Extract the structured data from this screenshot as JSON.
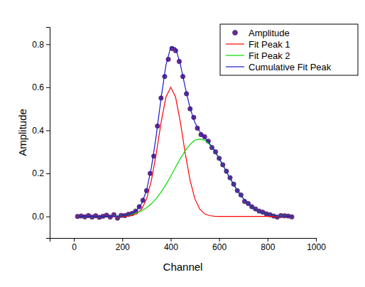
{
  "chart_data": {
    "type": "scatter",
    "x_label": "Channel",
    "y_label": "Amplitude",
    "xlim": [
      -100,
      1000
    ],
    "xticks": [
      0,
      200,
      400,
      600,
      800,
      1000
    ],
    "ylim": [
      -0.1,
      0.88
    ],
    "yticks": [
      {
        "value": 0,
        "label": "0.0"
      },
      {
        "value": 0.2,
        "label": "0.2"
      },
      {
        "value": 0.4,
        "label": "0.4"
      },
      {
        "value": 0.6,
        "label": "0.6"
      },
      {
        "value": 0.8,
        "label": "0.8"
      }
    ],
    "legend": "top-right",
    "series": [
      {
        "name": "Amplitude",
        "type": "scatter",
        "marker": "circle",
        "color": "#6a2c91",
        "x": [
          15,
          30,
          45,
          60,
          75,
          90,
          105,
          120,
          135,
          150,
          165,
          180,
          195,
          210,
          225,
          240,
          255,
          270,
          285,
          300,
          315,
          330,
          345,
          360,
          375,
          390,
          405,
          420,
          435,
          450,
          465,
          480,
          495,
          510,
          525,
          540,
          555,
          570,
          585,
          600,
          615,
          630,
          645,
          660,
          675,
          690,
          705,
          720,
          735,
          750,
          765,
          780,
          795,
          810,
          825,
          840,
          855,
          870,
          885,
          900
        ],
        "values": [
          0.0,
          0.002,
          -0.002,
          0.004,
          -0.003,
          0.003,
          -0.004,
          0.001,
          0.006,
          -0.003,
          0.008,
          -0.008,
          0.005,
          0.004,
          0.01,
          0.014,
          0.025,
          0.045,
          0.075,
          0.12,
          0.2,
          0.28,
          0.42,
          0.55,
          0.65,
          0.73,
          0.78,
          0.77,
          0.72,
          0.65,
          0.57,
          0.5,
          0.46,
          0.41,
          0.38,
          0.37,
          0.35,
          0.32,
          0.3,
          0.27,
          0.24,
          0.21,
          0.18,
          0.15,
          0.12,
          0.1,
          0.07,
          0.06,
          0.045,
          0.035,
          0.025,
          0.02,
          0.012,
          0.008,
          0.002,
          -0.003,
          0.004,
          0.003,
          0.002,
          -0.002
        ]
      },
      {
        "name": "Fit Peak 1",
        "type": "line",
        "line_style": "solid",
        "color": "#ff0000",
        "x": [
          20,
          40,
          60,
          80,
          100,
          120,
          140,
          160,
          180,
          200,
          220,
          240,
          260,
          280,
          300,
          320,
          340,
          360,
          380,
          400,
          420,
          440,
          460,
          480,
          500,
          520,
          540,
          560,
          580,
          600,
          620,
          640,
          660,
          680,
          700,
          720,
          740,
          760,
          780,
          800,
          820,
          840,
          860,
          880,
          900
        ],
        "values": [
          0,
          0,
          0,
          0,
          0,
          0,
          0,
          0,
          0,
          0,
          0.001,
          0.004,
          0.012,
          0.034,
          0.081,
          0.167,
          0.292,
          0.436,
          0.554,
          0.6,
          0.554,
          0.436,
          0.292,
          0.167,
          0.081,
          0.034,
          0.012,
          0.004,
          0.001,
          0,
          0,
          0,
          0,
          0,
          0,
          0,
          0,
          0,
          0,
          0,
          0,
          0,
          0,
          0,
          0
        ]
      },
      {
        "name": "Fit Peak 2",
        "type": "line",
        "line_style": "solid",
        "color": "#00dd00",
        "x": [
          20,
          40,
          60,
          80,
          100,
          120,
          140,
          160,
          180,
          200,
          220,
          240,
          260,
          280,
          300,
          320,
          340,
          360,
          380,
          400,
          420,
          440,
          460,
          480,
          500,
          520,
          540,
          560,
          580,
          600,
          620,
          640,
          660,
          680,
          700,
          720,
          740,
          760,
          780,
          800,
          820,
          840,
          860,
          880,
          900
        ],
        "values": [
          0,
          0,
          0,
          0,
          0,
          0,
          0,
          0.001,
          0.002,
          0.003,
          0.006,
          0.01,
          0.017,
          0.026,
          0.04,
          0.059,
          0.083,
          0.113,
          0.148,
          0.187,
          0.229,
          0.269,
          0.306,
          0.335,
          0.354,
          0.36,
          0.354,
          0.335,
          0.306,
          0.269,
          0.229,
          0.187,
          0.148,
          0.113,
          0.083,
          0.059,
          0.04,
          0.026,
          0.017,
          0.01,
          0.006,
          0.003,
          0.002,
          0.001,
          0
        ]
      },
      {
        "name": "Cumulative Fit Peak",
        "type": "line",
        "line_style": "solid",
        "color": "#1a1acc",
        "x": [
          20,
          40,
          60,
          80,
          100,
          120,
          140,
          160,
          180,
          200,
          220,
          240,
          260,
          280,
          300,
          320,
          340,
          360,
          380,
          400,
          420,
          440,
          460,
          480,
          500,
          520,
          540,
          560,
          580,
          600,
          620,
          640,
          660,
          680,
          700,
          720,
          740,
          760,
          780,
          800,
          820,
          840,
          860,
          880,
          900
        ],
        "values": [
          0,
          0,
          0,
          0,
          0,
          0,
          0,
          0.001,
          0.002,
          0.003,
          0.007,
          0.014,
          0.029,
          0.06,
          0.121,
          0.226,
          0.375,
          0.549,
          0.702,
          0.787,
          0.783,
          0.705,
          0.598,
          0.502,
          0.435,
          0.394,
          0.366,
          0.339,
          0.307,
          0.269,
          0.229,
          0.187,
          0.148,
          0.113,
          0.083,
          0.059,
          0.04,
          0.026,
          0.017,
          0.01,
          0.006,
          0.003,
          0.002,
          0.001,
          0
        ]
      }
    ]
  }
}
